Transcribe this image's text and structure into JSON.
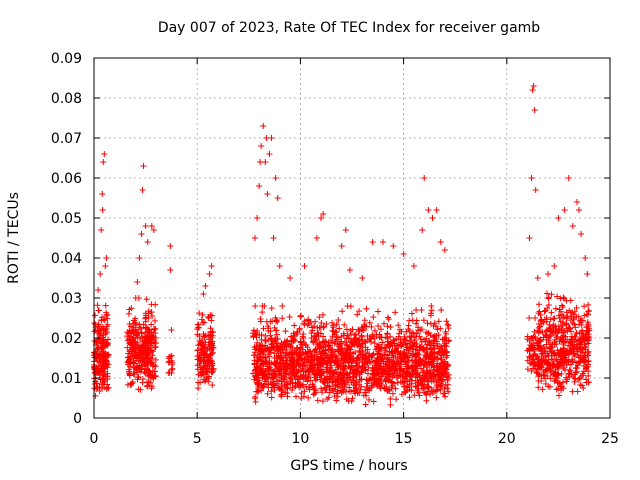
{
  "chart_data": {
    "type": "scatter",
    "title": "Day 007 of 2023, Rate Of TEC Index for receiver gamb",
    "xlabel": "GPS time / hours",
    "ylabel": "ROTI / TECUs",
    "xlim": [
      0,
      25
    ],
    "ylim": [
      0,
      0.09
    ],
    "xticks": [
      0,
      5,
      10,
      15,
      20,
      25
    ],
    "yticks": [
      0,
      0.01,
      0.02,
      0.03,
      0.04,
      0.05,
      0.06,
      0.07,
      0.08,
      0.09
    ],
    "xtick_labels": [
      "0",
      "5",
      "10",
      "15",
      "20",
      "25"
    ],
    "ytick_labels": [
      "0",
      "0.01",
      "0.02",
      "0.03",
      "0.04",
      "0.05",
      "0.06",
      "0.07",
      "0.08",
      "0.09"
    ],
    "grid": true,
    "marker": "plus",
    "color": "#ff0000",
    "clusters": [
      {
        "x_start": 0.0,
        "x_end": 0.7,
        "y_min": 0.005,
        "y_max": 0.03,
        "count": 200
      },
      {
        "x_start": 1.6,
        "x_end": 3.0,
        "y_min": 0.006,
        "y_max": 0.03,
        "count": 320
      },
      {
        "x_start": 3.6,
        "x_end": 3.8,
        "y_min": 0.009,
        "y_max": 0.02,
        "count": 14
      },
      {
        "x_start": 5.0,
        "x_end": 5.8,
        "y_min": 0.006,
        "y_max": 0.028,
        "count": 160
      },
      {
        "x_start": 7.7,
        "x_end": 17.2,
        "y_min": 0.003,
        "y_max": 0.028,
        "count": 1900
      },
      {
        "x_start": 21.0,
        "x_end": 21.5,
        "y_min": 0.008,
        "y_max": 0.025,
        "count": 60
      },
      {
        "x_start": 21.5,
        "x_end": 24.0,
        "y_min": 0.005,
        "y_max": 0.032,
        "count": 500
      }
    ],
    "outliers": [
      [
        0.2,
        0.032
      ],
      [
        0.3,
        0.036
      ],
      [
        0.35,
        0.047
      ],
      [
        0.4,
        0.056
      ],
      [
        0.42,
        0.052
      ],
      [
        0.45,
        0.064
      ],
      [
        0.5,
        0.066
      ],
      [
        0.55,
        0.038
      ],
      [
        0.6,
        0.04
      ],
      [
        2.1,
        0.034
      ],
      [
        2.2,
        0.04
      ],
      [
        2.3,
        0.046
      ],
      [
        2.35,
        0.057
      ],
      [
        2.4,
        0.063
      ],
      [
        2.5,
        0.048
      ],
      [
        2.6,
        0.044
      ],
      [
        2.8,
        0.048
      ],
      [
        2.9,
        0.047
      ],
      [
        3.7,
        0.043
      ],
      [
        3.7,
        0.037
      ],
      [
        3.75,
        0.022
      ],
      [
        5.3,
        0.031
      ],
      [
        5.4,
        0.033
      ],
      [
        5.6,
        0.036
      ],
      [
        5.7,
        0.038
      ],
      [
        7.8,
        0.045
      ],
      [
        7.9,
        0.05
      ],
      [
        8.0,
        0.058
      ],
      [
        8.05,
        0.064
      ],
      [
        8.1,
        0.068
      ],
      [
        8.2,
        0.073
      ],
      [
        8.3,
        0.064
      ],
      [
        8.35,
        0.07
      ],
      [
        8.4,
        0.056
      ],
      [
        8.5,
        0.066
      ],
      [
        8.6,
        0.07
      ],
      [
        8.8,
        0.06
      ],
      [
        8.9,
        0.055
      ],
      [
        8.7,
        0.045
      ],
      [
        9.0,
        0.038
      ],
      [
        9.5,
        0.035
      ],
      [
        10.2,
        0.038
      ],
      [
        10.8,
        0.045
      ],
      [
        11.0,
        0.05
      ],
      [
        11.1,
        0.051
      ],
      [
        12.0,
        0.043
      ],
      [
        12.2,
        0.047
      ],
      [
        12.4,
        0.037
      ],
      [
        13.0,
        0.035
      ],
      [
        13.5,
        0.044
      ],
      [
        14.0,
        0.044
      ],
      [
        14.5,
        0.043
      ],
      [
        15.0,
        0.041
      ],
      [
        15.5,
        0.038
      ],
      [
        15.9,
        0.047
      ],
      [
        16.0,
        0.06
      ],
      [
        16.2,
        0.052
      ],
      [
        16.4,
        0.05
      ],
      [
        16.6,
        0.052
      ],
      [
        16.8,
        0.044
      ],
      [
        17.0,
        0.042
      ],
      [
        21.1,
        0.045
      ],
      [
        21.2,
        0.06
      ],
      [
        21.25,
        0.082
      ],
      [
        21.3,
        0.083
      ],
      [
        21.35,
        0.077
      ],
      [
        21.4,
        0.057
      ],
      [
        21.5,
        0.035
      ],
      [
        22.0,
        0.036
      ],
      [
        22.3,
        0.038
      ],
      [
        22.5,
        0.05
      ],
      [
        22.8,
        0.052
      ],
      [
        23.0,
        0.06
      ],
      [
        23.2,
        0.048
      ],
      [
        23.4,
        0.054
      ],
      [
        23.5,
        0.052
      ],
      [
        23.6,
        0.046
      ],
      [
        23.8,
        0.04
      ],
      [
        23.9,
        0.036
      ]
    ]
  }
}
